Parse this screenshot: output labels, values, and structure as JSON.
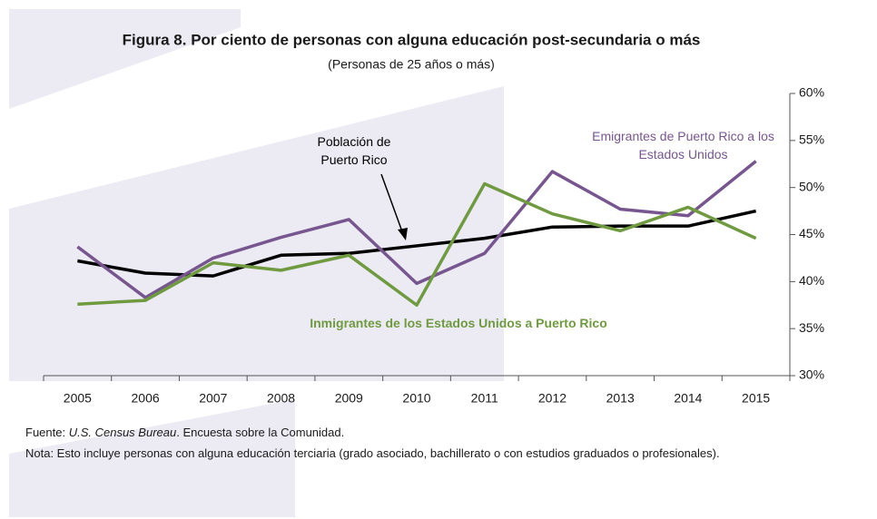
{
  "chart_data": {
    "type": "line",
    "title": "Figura 8. Por ciento de personas con alguna educación post-secundaria o más",
    "subtitle": "(Personas de 25 años o más)",
    "categories": [
      "2005",
      "2006",
      "2007",
      "2008",
      "2009",
      "2010",
      "2011",
      "2012",
      "2013",
      "2014",
      "2015"
    ],
    "series": [
      {
        "name": "Población de Puerto Rico",
        "color": "#000000",
        "values": [
          42.2,
          40.9,
          40.6,
          42.8,
          43.0,
          43.8,
          44.6,
          45.8,
          45.9,
          45.9,
          47.5
        ]
      },
      {
        "name": "Emigrantes de Puerto Rico a los Estados Unidos",
        "color": "#77568f",
        "values": [
          43.7,
          38.3,
          42.5,
          44.7,
          46.6,
          39.8,
          43.0,
          51.7,
          47.7,
          47.0,
          52.8
        ]
      },
      {
        "name": "Inmigrantes de los Estados Unidos a Puerto Rico",
        "color": "#6f9a40",
        "values": [
          37.6,
          38.0,
          42.0,
          41.2,
          42.8,
          37.5,
          50.4,
          47.2,
          45.4,
          47.9,
          44.6
        ]
      }
    ],
    "ylim": [
      30,
      60
    ],
    "yticks": [
      {
        "value": 30,
        "label": "30%"
      },
      {
        "value": 35,
        "label": "35%"
      },
      {
        "value": 40,
        "label": "40%"
      },
      {
        "value": 45,
        "label": "45%"
      },
      {
        "value": 50,
        "label": "50%"
      },
      {
        "value": 55,
        "label": "55%"
      },
      {
        "value": 60,
        "label": "60%"
      }
    ],
    "y_axis_side": "right",
    "source": {
      "prefix": "Fuente: ",
      "italic": "U.S. Census Bureau",
      "suffix": ". Encuesta sobre la Comunidad."
    },
    "note": "Nota: Esto incluye personas con alguna educación terciaria (grado asociado, bachillerato o con estudios graduados o profesionales)."
  }
}
